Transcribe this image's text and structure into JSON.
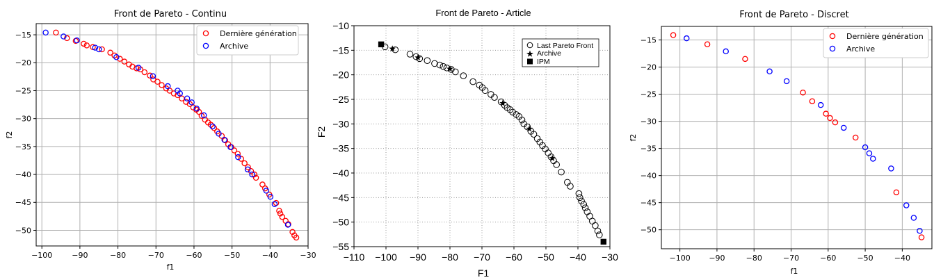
{
  "chart_data": [
    {
      "type": "scatter",
      "title": "Front de Pareto - Continu",
      "xlabel": "f1",
      "ylabel": "f2",
      "xlim": [
        -101.5,
        -30
      ],
      "ylim": [
        -52.8,
        -13
      ],
      "xticks": [
        -100,
        -90,
        -80,
        -70,
        -60,
        -50,
        -40,
        -30
      ],
      "yticks": [
        -15,
        -20,
        -25,
        -30,
        -35,
        -40,
        -45,
        -50
      ],
      "grid": true,
      "legend_position": "top-right",
      "series": [
        {
          "name": "Dernière génération",
          "color": "#ff0000",
          "marker": "open-circle",
          "points": [
            [
              -96.3,
              -14.6
            ],
            [
              -93.4,
              -15.6
            ],
            [
              -91.1,
              -16.1
            ],
            [
              -89.0,
              -16.6
            ],
            [
              -88.2,
              -16.9
            ],
            [
              -86.6,
              -17.2
            ],
            [
              -84.2,
              -17.6
            ],
            [
              -82.0,
              -18.2
            ],
            [
              -80.9,
              -18.7
            ],
            [
              -79.5,
              -19.3
            ],
            [
              -78.3,
              -19.8
            ],
            [
              -77.1,
              -20.3
            ],
            [
              -76.2,
              -20.7
            ],
            [
              -75.1,
              -21.0
            ],
            [
              -74.1,
              -21.2
            ],
            [
              -73.0,
              -21.7
            ],
            [
              -71.6,
              -22.3
            ],
            [
              -70.7,
              -23.0
            ],
            [
              -69.6,
              -23.4
            ],
            [
              -68.5,
              -24.0
            ],
            [
              -67.3,
              -24.6
            ],
            [
              -66.4,
              -25.0
            ],
            [
              -65.3,
              -25.5
            ],
            [
              -64.3,
              -25.8
            ],
            [
              -63.2,
              -26.4
            ],
            [
              -62.1,
              -27.0
            ],
            [
              -61.1,
              -27.4
            ],
            [
              -60.2,
              -28.0
            ],
            [
              -59.4,
              -28.4
            ],
            [
              -58.7,
              -28.8
            ],
            [
              -58.0,
              -29.5
            ],
            [
              -57.1,
              -30.2
            ],
            [
              -56.3,
              -30.7
            ],
            [
              -55.6,
              -31.1
            ],
            [
              -54.7,
              -31.7
            ],
            [
              -53.9,
              -32.3
            ],
            [
              -52.7,
              -33.1
            ],
            [
              -51.8,
              -33.9
            ],
            [
              -51.0,
              -34.6
            ],
            [
              -50.2,
              -35.1
            ],
            [
              -49.4,
              -35.7
            ],
            [
              -48.5,
              -36.3
            ],
            [
              -47.6,
              -37.2
            ],
            [
              -46.7,
              -38.0
            ],
            [
              -45.8,
              -38.7
            ],
            [
              -45.0,
              -39.4
            ],
            [
              -44.1,
              -40.0
            ],
            [
              -43.7,
              -40.6
            ],
            [
              -42.0,
              -41.8
            ],
            [
              -41.3,
              -42.5
            ],
            [
              -40.2,
              -43.6
            ],
            [
              -38.4,
              -45.1
            ],
            [
              -37.6,
              -46.5
            ],
            [
              -37.3,
              -47.0
            ],
            [
              -36.8,
              -47.6
            ],
            [
              -35.9,
              -48.3
            ],
            [
              -35.2,
              -48.9
            ],
            [
              -34.1,
              -50.3
            ],
            [
              -33.6,
              -50.9
            ],
            [
              -33.1,
              -51.3
            ]
          ]
        },
        {
          "name": "Archive",
          "color": "#0000ff",
          "marker": "open-circle",
          "points": [
            [
              -99.0,
              -14.6
            ],
            [
              -94.3,
              -15.3
            ],
            [
              -90.8,
              -16.0
            ],
            [
              -86.0,
              -17.3
            ],
            [
              -85.0,
              -17.6
            ],
            [
              -80.4,
              -19.0
            ],
            [
              -74.6,
              -20.9
            ],
            [
              -70.8,
              -22.4
            ],
            [
              -66.9,
              -24.2
            ],
            [
              -64.3,
              -25.0
            ],
            [
              -63.7,
              -25.5
            ],
            [
              -61.8,
              -26.4
            ],
            [
              -60.6,
              -27.1
            ],
            [
              -59.3,
              -28.2
            ],
            [
              -57.4,
              -29.4
            ],
            [
              -55.1,
              -31.4
            ],
            [
              -53.5,
              -32.7
            ],
            [
              -52.0,
              -33.8
            ],
            [
              -50.4,
              -35.1
            ],
            [
              -48.4,
              -36.9
            ],
            [
              -45.9,
              -39.1
            ],
            [
              -44.7,
              -40.0
            ],
            [
              -41.0,
              -42.9
            ],
            [
              -39.9,
              -44.0
            ],
            [
              -38.8,
              -45.3
            ],
            [
              -35.3,
              -49.0
            ]
          ]
        }
      ]
    },
    {
      "type": "scatter",
      "title": "Front de Pareto - Article",
      "xlabel": "F1",
      "ylabel": "F2",
      "xlim": [
        -110,
        -30
      ],
      "ylim": [
        -55,
        -10
      ],
      "xticks": [
        -110,
        -100,
        -90,
        -80,
        -70,
        -60,
        -50,
        -40,
        -30
      ],
      "yticks": [
        -10,
        -15,
        -20,
        -25,
        -30,
        -35,
        -40,
        -45,
        -50,
        -55
      ],
      "grid": true,
      "legend_position": "top-right",
      "series": [
        {
          "name": "Last Pareto Front",
          "color": "#000000",
          "marker": "open-circle",
          "points": [
            [
              -100.3,
              -14.3
            ],
            [
              -97.1,
              -14.9
            ],
            [
              -92.5,
              -15.8
            ],
            [
              -90.6,
              -16.3
            ],
            [
              -89.5,
              -16.7
            ],
            [
              -87.1,
              -17.1
            ],
            [
              -84.8,
              -17.7
            ],
            [
              -83.2,
              -18.0
            ],
            [
              -82.1,
              -18.3
            ],
            [
              -81.0,
              -18.6
            ],
            [
              -79.6,
              -18.9
            ],
            [
              -78.3,
              -19.4
            ],
            [
              -75.8,
              -20.2
            ],
            [
              -72.8,
              -21.4
            ],
            [
              -70.8,
              -22.1
            ],
            [
              -69.9,
              -22.6
            ],
            [
              -69.0,
              -23.2
            ],
            [
              -67.2,
              -24.0
            ],
            [
              -66.1,
              -24.6
            ],
            [
              -64.0,
              -25.5
            ],
            [
              -62.9,
              -26.2
            ],
            [
              -62.1,
              -26.7
            ],
            [
              -61.2,
              -27.1
            ],
            [
              -60.4,
              -27.6
            ],
            [
              -59.3,
              -28.1
            ],
            [
              -58.4,
              -28.5
            ],
            [
              -57.5,
              -29.2
            ],
            [
              -56.9,
              -30.0
            ],
            [
              -55.8,
              -30.6
            ],
            [
              -54.7,
              -31.5
            ],
            [
              -53.8,
              -32.1
            ],
            [
              -52.7,
              -33.0
            ],
            [
              -51.9,
              -33.7
            ],
            [
              -51.1,
              -34.4
            ],
            [
              -50.2,
              -35.1
            ],
            [
              -49.3,
              -35.9
            ],
            [
              -48.4,
              -36.7
            ],
            [
              -47.6,
              -37.5
            ],
            [
              -46.7,
              -38.3
            ],
            [
              -45.2,
              -39.8
            ],
            [
              -43.3,
              -41.9
            ],
            [
              -42.4,
              -42.7
            ],
            [
              -39.7,
              -44.2
            ],
            [
              -39.4,
              -45.0
            ],
            [
              -38.9,
              -45.7
            ],
            [
              -38.2,
              -46.4
            ],
            [
              -37.7,
              -47.1
            ],
            [
              -37.1,
              -47.9
            ],
            [
              -36.3,
              -48.8
            ],
            [
              -35.5,
              -49.8
            ],
            [
              -34.6,
              -50.7
            ],
            [
              -33.8,
              -51.8
            ],
            [
              -33.3,
              -52.6
            ]
          ]
        },
        {
          "name": "Archive",
          "color": "#000000",
          "marker": "star",
          "points": [
            [
              -98.0,
              -14.7
            ],
            [
              -90.0,
              -16.5
            ],
            [
              -80.0,
              -18.8
            ],
            [
              -63.5,
              -25.8
            ],
            [
              -55.2,
              -31.0
            ],
            [
              -48.0,
              -37.0
            ]
          ]
        },
        {
          "name": "IPM",
          "color": "#000000",
          "marker": "filled-square",
          "points": [
            [
              -101.5,
              -13.8
            ],
            [
              -32.0,
              -54.0
            ]
          ]
        }
      ]
    },
    {
      "type": "scatter",
      "title": "Front de Pareto - Discret",
      "xlabel": "f1",
      "ylabel": "f2",
      "xlim": [
        -105,
        -32
      ],
      "ylim": [
        -53.5,
        -12.5
      ],
      "xticks": [
        -100,
        -90,
        -80,
        -70,
        -60,
        -50,
        -40
      ],
      "yticks": [
        -15,
        -20,
        -25,
        -30,
        -35,
        -40,
        -45,
        -50
      ],
      "grid": true,
      "legend_position": "top-right",
      "series": [
        {
          "name": "Dernière génération",
          "color": "#ff0000",
          "marker": "open-circle",
          "points": [
            [
              -101.8,
              -14.1
            ],
            [
              -92.6,
              -15.8
            ],
            [
              -82.4,
              -18.5
            ],
            [
              -66.8,
              -24.7
            ],
            [
              -64.3,
              -26.3
            ],
            [
              -60.6,
              -28.6
            ],
            [
              -59.5,
              -29.4
            ],
            [
              -58.1,
              -30.2
            ],
            [
              -52.6,
              -33.0
            ],
            [
              -41.6,
              -43.1
            ],
            [
              -34.8,
              -51.4
            ]
          ]
        },
        {
          "name": "Archive",
          "color": "#0000ff",
          "marker": "open-circle",
          "points": [
            [
              -98.2,
              -14.7
            ],
            [
              -87.6,
              -17.1
            ],
            [
              -75.8,
              -20.8
            ],
            [
              -71.2,
              -22.6
            ],
            [
              -62.0,
              -27.0
            ],
            [
              -55.8,
              -31.2
            ],
            [
              -50.0,
              -34.8
            ],
            [
              -48.9,
              -35.9
            ],
            [
              -47.9,
              -36.9
            ],
            [
              -43.0,
              -38.7
            ],
            [
              -38.9,
              -45.5
            ],
            [
              -36.9,
              -47.8
            ],
            [
              -35.3,
              -50.2
            ]
          ]
        }
      ]
    }
  ]
}
